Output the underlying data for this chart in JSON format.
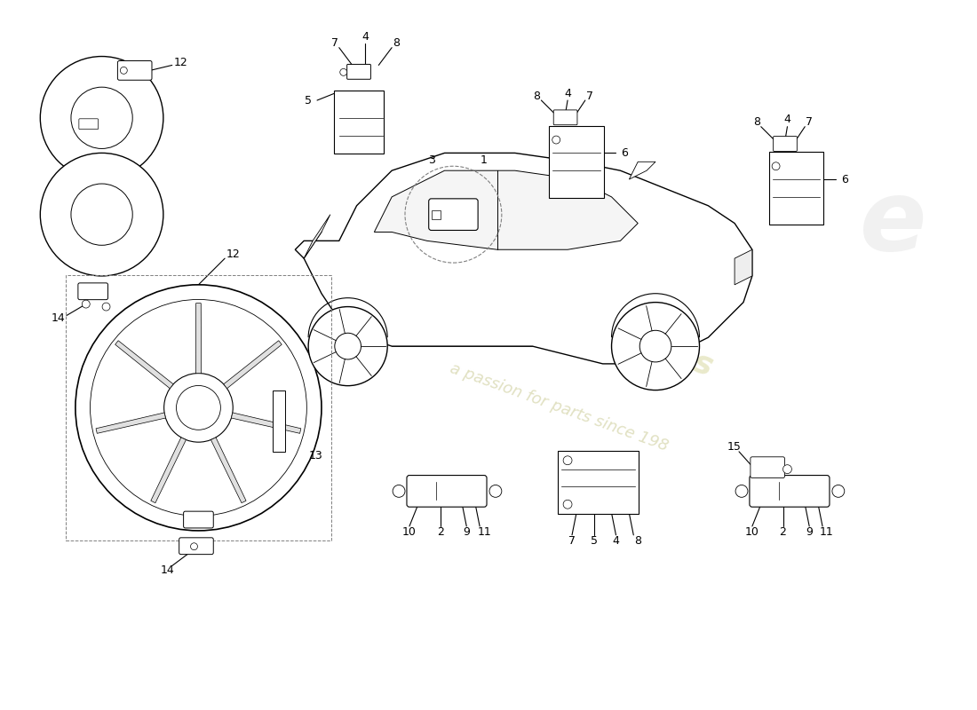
{
  "bg_color": "#ffffff",
  "line_color": "#000000",
  "watermark_color1": "#d8d8a0",
  "watermark_color2": "#c8c890",
  "figsize": [
    11.0,
    8.0
  ],
  "dpi": 100,
  "xlim": [
    0,
    110
  ],
  "ylim": [
    0,
    80
  ]
}
